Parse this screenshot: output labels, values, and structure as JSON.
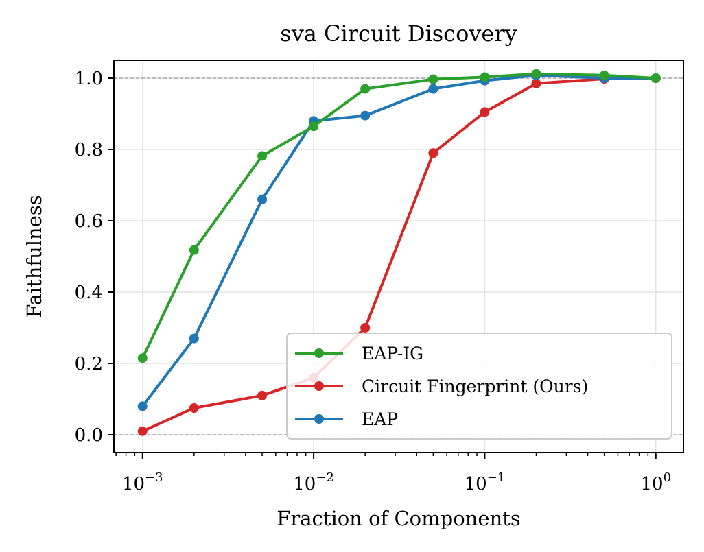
{
  "chart_data": {
    "type": "line",
    "title": "sva Circuit Discovery",
    "xlabel": "Fraction of Components",
    "ylabel": "Faithfulness",
    "xscale": "log",
    "xlim": [
      0.00068,
      1.45
    ],
    "ylim": [
      -0.05,
      1.05
    ],
    "grid": true,
    "reference_lines": [
      0.0,
      1.0
    ],
    "legend_position": "lower-right",
    "x_ticks": [
      {
        "value": 0.001,
        "base": "10",
        "exp": "−3"
      },
      {
        "value": 0.01,
        "base": "10",
        "exp": "−2"
      },
      {
        "value": 0.1,
        "base": "10",
        "exp": "−1"
      },
      {
        "value": 1,
        "base": "10",
        "exp": "0"
      }
    ],
    "y_ticks": [
      {
        "value": 0.0,
        "label": "0.0"
      },
      {
        "value": 0.2,
        "label": "0.2"
      },
      {
        "value": 0.4,
        "label": "0.4"
      },
      {
        "value": 0.6,
        "label": "0.6"
      },
      {
        "value": 0.8,
        "label": "0.8"
      },
      {
        "value": 1.0,
        "label": "1.0"
      }
    ],
    "x": [
      0.001,
      0.002,
      0.005,
      0.01,
      0.02,
      0.05,
      0.1,
      0.2,
      0.5,
      1.0
    ],
    "series": [
      {
        "name": "Circuit Fingerprint (Ours)",
        "color": "#d62728",
        "values": [
          0.01,
          0.075,
          0.11,
          0.16,
          0.3,
          0.79,
          0.905,
          0.985,
          0.998,
          1.0
        ]
      },
      {
        "name": "EAP",
        "color": "#1f77b4",
        "values": [
          0.08,
          0.27,
          0.66,
          0.88,
          0.895,
          0.97,
          0.993,
          1.008,
          1.0,
          1.0
        ]
      },
      {
        "name": "EAP-IG",
        "color": "#2ca02c",
        "values": [
          0.215,
          0.518,
          0.782,
          0.865,
          0.97,
          0.997,
          1.003,
          1.012,
          1.008,
          1.0
        ]
      }
    ],
    "legend_order": [
      "EAP-IG",
      "Circuit Fingerprint (Ours)",
      "EAP"
    ]
  }
}
